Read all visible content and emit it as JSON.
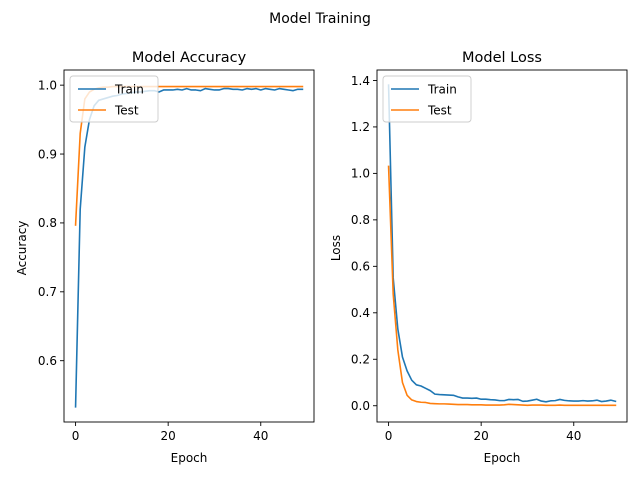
{
  "figure": {
    "title": "Model Training",
    "colors": {
      "train": "#1f77b4",
      "test": "#ff7f0e"
    }
  },
  "chart_data": [
    {
      "type": "line",
      "title": "Model Accuracy",
      "xlabel": "Epoch",
      "ylabel": "Accuracy",
      "xlim": [
        -2.5,
        51.5
      ],
      "ylim": [
        0.511,
        1.022
      ],
      "xticks": [
        0,
        20,
        40
      ],
      "yticks": [
        0.6,
        0.7,
        0.8,
        0.9,
        1.0
      ],
      "ytick_labels": [
        "0.6",
        "0.7",
        "0.8",
        "0.9",
        "1.0"
      ],
      "legend": "upper left",
      "grid": false,
      "x": [
        0,
        1,
        2,
        3,
        4,
        5,
        6,
        7,
        8,
        9,
        10,
        11,
        12,
        13,
        14,
        15,
        16,
        17,
        18,
        19,
        20,
        21,
        22,
        23,
        24,
        25,
        26,
        27,
        28,
        29,
        30,
        31,
        32,
        33,
        34,
        35,
        36,
        37,
        38,
        39,
        40,
        41,
        42,
        43,
        44,
        45,
        46,
        47,
        48,
        49
      ],
      "series": [
        {
          "name": "Train",
          "color": "#1f77b4",
          "values": [
            0.533,
            0.82,
            0.91,
            0.95,
            0.97,
            0.978,
            0.98,
            0.982,
            0.984,
            0.985,
            0.987,
            0.988,
            0.989,
            0.99,
            0.99,
            0.991,
            0.992,
            0.992,
            0.99,
            0.993,
            0.993,
            0.993,
            0.994,
            0.993,
            0.995,
            0.993,
            0.993,
            0.992,
            0.995,
            0.994,
            0.993,
            0.993,
            0.995,
            0.995,
            0.994,
            0.994,
            0.993,
            0.995,
            0.994,
            0.995,
            0.993,
            0.995,
            0.994,
            0.993,
            0.995,
            0.994,
            0.993,
            0.992,
            0.994,
            0.994
          ]
        },
        {
          "name": "Test",
          "color": "#ff7f0e",
          "values": [
            0.797,
            0.93,
            0.98,
            0.99,
            0.994,
            0.996,
            0.997,
            0.997,
            0.998,
            0.998,
            0.998,
            0.998,
            0.998,
            0.998,
            0.998,
            0.998,
            0.998,
            0.998,
            0.998,
            0.998,
            0.998,
            0.998,
            0.998,
            0.998,
            0.998,
            0.998,
            0.998,
            0.998,
            0.998,
            0.998,
            0.998,
            0.998,
            0.998,
            0.998,
            0.998,
            0.998,
            0.998,
            0.998,
            0.998,
            0.998,
            0.998,
            0.998,
            0.998,
            0.998,
            0.998,
            0.998,
            0.998,
            0.998,
            0.998,
            0.998
          ]
        }
      ]
    },
    {
      "type": "line",
      "title": "Model Loss",
      "xlabel": "Epoch",
      "ylabel": "Loss",
      "xlim": [
        -2.5,
        51.5
      ],
      "ylim": [
        -0.07,
        1.445
      ],
      "xticks": [
        0,
        20,
        40
      ],
      "yticks": [
        0.0,
        0.2,
        0.4,
        0.6,
        0.8,
        1.0,
        1.2,
        1.4
      ],
      "ytick_labels": [
        "0.0",
        "0.2",
        "0.4",
        "0.6",
        "0.8",
        "1.0",
        "1.2",
        "1.4"
      ],
      "legend": "upper left",
      "grid": false,
      "x": [
        0,
        1,
        2,
        3,
        4,
        5,
        6,
        7,
        8,
        9,
        10,
        11,
        12,
        13,
        14,
        15,
        16,
        17,
        18,
        19,
        20,
        21,
        22,
        23,
        24,
        25,
        26,
        27,
        28,
        29,
        30,
        31,
        32,
        33,
        34,
        35,
        36,
        37,
        38,
        39,
        40,
        41,
        42,
        43,
        44,
        45,
        46,
        47,
        48,
        49
      ],
      "series": [
        {
          "name": "Train",
          "color": "#1f77b4",
          "values": [
            1.38,
            0.55,
            0.33,
            0.21,
            0.15,
            0.11,
            0.09,
            0.085,
            0.075,
            0.065,
            0.05,
            0.048,
            0.047,
            0.046,
            0.045,
            0.038,
            0.033,
            0.033,
            0.032,
            0.033,
            0.028,
            0.028,
            0.026,
            0.025,
            0.022,
            0.022,
            0.027,
            0.026,
            0.027,
            0.019,
            0.02,
            0.024,
            0.028,
            0.02,
            0.017,
            0.021,
            0.022,
            0.027,
            0.023,
            0.021,
            0.02,
            0.02,
            0.022,
            0.02,
            0.021,
            0.024,
            0.018,
            0.02,
            0.024,
            0.019
          ]
        },
        {
          "name": "Test",
          "color": "#ff7f0e",
          "values": [
            1.03,
            0.48,
            0.24,
            0.1,
            0.045,
            0.025,
            0.018,
            0.015,
            0.014,
            0.01,
            0.009,
            0.008,
            0.008,
            0.007,
            0.006,
            0.005,
            0.005,
            0.005,
            0.004,
            0.004,
            0.004,
            0.003,
            0.003,
            0.003,
            0.003,
            0.004,
            0.006,
            0.005,
            0.004,
            0.003,
            0.002,
            0.003,
            0.003,
            0.003,
            0.002,
            0.002,
            0.002,
            0.003,
            0.002,
            0.002,
            0.002,
            0.002,
            0.002,
            0.002,
            0.002,
            0.002,
            0.002,
            0.002,
            0.002,
            0.002
          ]
        }
      ]
    }
  ]
}
